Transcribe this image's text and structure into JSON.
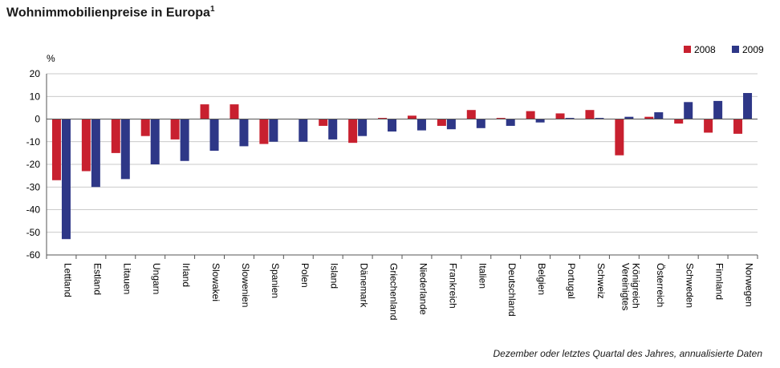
{
  "title": "Wohnimmobilienpreise in Europa",
  "title_superscript": "1",
  "footnote": "Dezember oder letztes Quartal des Jahres, annualisierte Daten",
  "chart_data": {
    "type": "bar",
    "ylabel": "%",
    "ylim": [
      -60,
      20
    ],
    "yticks": [
      20,
      10,
      0,
      -10,
      -20,
      -30,
      -40,
      -50,
      -60
    ],
    "grid": true,
    "legend_position": "top-right",
    "categories": [
      "Lettland",
      "Estland",
      "Litauen",
      "Ungarn",
      "Irland",
      "Slowakei",
      "Slowenien",
      "Spanien",
      "Polen",
      "Island",
      "Dänemark",
      "Griechenland",
      "Niederlande",
      "Frankreich",
      "Italien",
      "Deutschland",
      "Belgien",
      "Portugal",
      "Schweiz",
      "Vereinigtes Königreich",
      "Österreich",
      "Schweden",
      "Finnland",
      "Norwegen"
    ],
    "series": [
      {
        "name": "2008",
        "color": "#c8202f",
        "values": [
          -27,
          -23,
          -15,
          -7.5,
          -9,
          6.5,
          6.5,
          -11,
          0,
          -3,
          -10.5,
          0.5,
          1.5,
          -3,
          4,
          0.5,
          3.5,
          2.5,
          4,
          -16,
          1,
          -2,
          -6,
          -6.5
        ]
      },
      {
        "name": "2009",
        "color": "#2e3787",
        "values": [
          -53,
          -30,
          -26.5,
          -20,
          -18.5,
          -14,
          -12,
          -10,
          -10,
          -9,
          -7.5,
          -5.5,
          -5,
          -4.5,
          -4,
          -3,
          -1.5,
          0.5,
          0.5,
          1,
          3,
          7.5,
          8,
          11.5
        ]
      }
    ]
  }
}
